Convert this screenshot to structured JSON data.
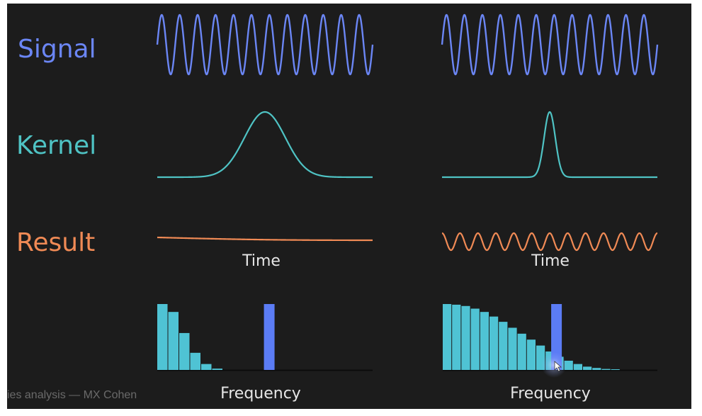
{
  "row_labels": {
    "signal": "Signal",
    "kernel": "Kernel",
    "result": "Result"
  },
  "axis_labels": {
    "left_time": "Time",
    "right_time": "Time",
    "left_frequency": "Frequency",
    "right_frequency": "Frequency"
  },
  "footer": "ies analysis — MX Cohen",
  "colors": {
    "background": "#1c1c1c",
    "signal": "#6b86f5",
    "kernel": "#4fc3c4",
    "result": "#f08a55",
    "spectrum_bar": "#4fc3d4",
    "signal_frequency_bar": "#5b7cf5",
    "axis_labels": "#e6e6e6",
    "footer": "#6a6a6a"
  },
  "panels": [
    {
      "name": "wide-kernel",
      "signal_cycles": 12,
      "kernel_width": "wide",
      "result": "flat",
      "spectrum_levels": [
        1.0,
        0.88,
        0.56,
        0.26,
        0.09,
        0.02
      ],
      "signal_frequency_position": 0.52
    },
    {
      "name": "narrow-kernel",
      "signal_cycles": 12,
      "kernel_width": "narrow",
      "result": "oscillating",
      "result_cycles": 12,
      "spectrum_levels": [
        1.0,
        0.99,
        0.97,
        0.93,
        0.88,
        0.81,
        0.73,
        0.64,
        0.55,
        0.46,
        0.37,
        0.28,
        0.2,
        0.14,
        0.09,
        0.05,
        0.03,
        0.015,
        0.008
      ],
      "signal_frequency_position": 0.53
    }
  ]
}
